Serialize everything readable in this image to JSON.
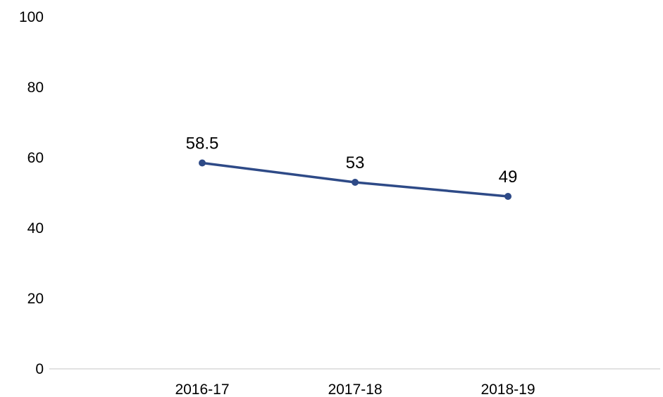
{
  "chart_data": {
    "type": "line",
    "categories": [
      "2016-17",
      "2017-18",
      "2018-19"
    ],
    "series": [
      {
        "values": [
          58.5,
          53,
          49
        ],
        "data_labels": [
          "58.5",
          "53",
          "49"
        ],
        "color": "#2e4a87"
      }
    ],
    "y_ticks": [
      "0",
      "20",
      "40",
      "60",
      "80",
      "100"
    ],
    "ylim": [
      0,
      100
    ],
    "grid": false,
    "legend": "none"
  },
  "colors": {
    "axis": "#d9d9d9",
    "text": "#000000"
  }
}
